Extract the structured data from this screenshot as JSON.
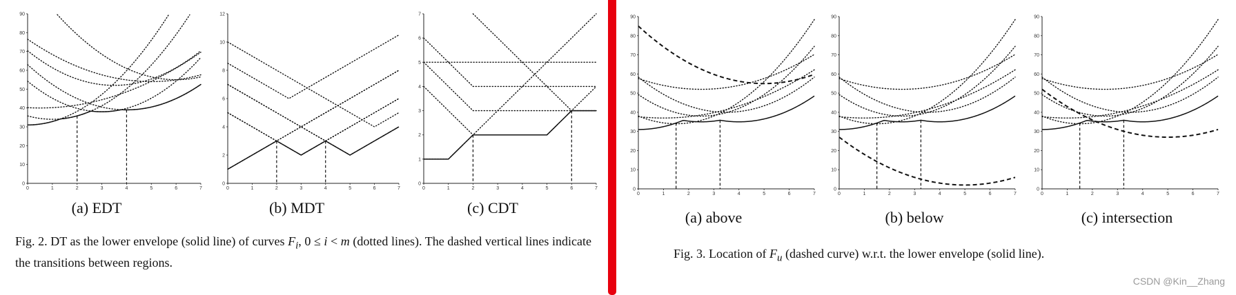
{
  "fig2": {
    "caption": {
      "prefix": "Fig. 2.   DT as the lower envelope (solid line) of curves ",
      "F": "F",
      "sub": "i",
      "mid": ", 0 ≤ ",
      "i": "i",
      "lt": " < ",
      "m": "m",
      "suffix": " (dotted  lines).  The dashed vertical  lines  indicate  the  transitions  between regions."
    },
    "panels": [
      {
        "label": "(a) EDT"
      },
      {
        "label": "(b) MDT"
      },
      {
        "label": "(c) CDT"
      }
    ]
  },
  "fig3": {
    "caption": {
      "prefix": "Fig. 3.   Location  of ",
      "F": "F",
      "sub": "u",
      "suffix": " (dashed  curve)  w.r.t.  the  lower  envelope  (solid  line)."
    },
    "panels": [
      {
        "label": "(a) above"
      },
      {
        "label": "(b) below"
      },
      {
        "label": "(c) intersection"
      }
    ]
  },
  "watermark": "CSDN @Kin__Zhang",
  "colors": {
    "divider": "#e8000e",
    "ink": "#111111"
  },
  "chart_data": [
    {
      "type": "line",
      "id": "edt",
      "xlim": [
        0,
        7
      ],
      "ylim": [
        0,
        90
      ],
      "xticks": [
        "0",
        "1",
        "2",
        "3",
        "4",
        "5",
        "6",
        "7"
      ],
      "yticks": [
        "0",
        "10",
        "20",
        "30",
        "40",
        "50",
        "60",
        "70",
        "80",
        "90"
      ],
      "dotted": [
        {
          "fn": "quad",
          "a": 1.8,
          "c": 0,
          "h": 31
        },
        {
          "fn": "quad",
          "a": 1.8,
          "c": 1,
          "h": 34
        },
        {
          "fn": "quad",
          "a": 1.8,
          "c": 3,
          "h": 38
        },
        {
          "fn": "quad",
          "a": 1.5,
          "c": 4,
          "h": 39
        },
        {
          "fn": "quad",
          "a": 1.5,
          "c": 3.5,
          "h": 52
        },
        {
          "fn": "quad",
          "a": 0.9,
          "c": 5,
          "h": 54
        },
        {
          "fn": "quad",
          "a": 0.7,
          "c": 0.5,
          "h": 40
        },
        {
          "fn": "quad",
          "a": 1.5,
          "c": 6,
          "h": 55
        }
      ],
      "envelope": true,
      "transitions": [
        2,
        4
      ]
    },
    {
      "type": "line",
      "id": "mdt",
      "xlim": [
        0,
        7
      ],
      "ylim": [
        0,
        12
      ],
      "xticks": [
        "0",
        "1",
        "2",
        "3",
        "4",
        "5",
        "6",
        "7"
      ],
      "yticks": [
        "0",
        "2",
        "4",
        "6",
        "8",
        "10",
        "12"
      ],
      "dotted": [
        {
          "fn": "abs",
          "c": 0,
          "h": 1
        },
        {
          "fn": "abs",
          "c": 2,
          "h": 3
        },
        {
          "fn": "abs",
          "c": 3,
          "h": 2
        },
        {
          "fn": "abs",
          "c": 4,
          "h": 3
        },
        {
          "fn": "abs",
          "c": 5,
          "h": 2
        },
        {
          "fn": "abs",
          "c": 2.5,
          "h": 6
        },
        {
          "fn": "abs",
          "c": 6,
          "h": 4
        }
      ],
      "envelope": true,
      "transitions": [
        2,
        4
      ]
    },
    {
      "type": "line",
      "id": "cdt",
      "xlim": [
        0,
        7
      ],
      "ylim": [
        0,
        7
      ],
      "xticks": [
        "0",
        "1",
        "2",
        "3",
        "4",
        "5",
        "6",
        "7"
      ],
      "yticks": [
        "0",
        "1",
        "2",
        "3",
        "4",
        "5",
        "6",
        "7"
      ],
      "dotted": [
        {
          "fn": "cheb",
          "c": 0.5,
          "w": 0.5,
          "h": 1
        },
        {
          "fn": "cheb",
          "c": 3.5,
          "w": 1.5,
          "h": 2
        },
        {
          "fn": "cheb",
          "c": 6.5,
          "w": 0.5,
          "h": 3
        },
        {
          "fn": "cheb",
          "c": 4.5,
          "w": 2.5,
          "h": 3
        },
        {
          "fn": "cheb",
          "c": 5,
          "w": 3,
          "h": 4
        },
        {
          "fn": "flat",
          "h": 5
        }
      ],
      "envelope": true,
      "transitions": [
        2,
        6
      ]
    },
    {
      "type": "line",
      "id": "above",
      "xlim": [
        0,
        7
      ],
      "ylim": [
        0,
        90
      ],
      "xticks": [
        "0",
        "1",
        "2",
        "3",
        "4",
        "5",
        "6",
        "7"
      ],
      "yticks": [
        "0",
        "10",
        "20",
        "30",
        "40",
        "50",
        "60",
        "70",
        "80",
        "90"
      ],
      "dotted": [
        {
          "fn": "quad",
          "a": 1.8,
          "c": 1.5,
          "h": 34
        },
        {
          "fn": "quad",
          "a": 1.8,
          "c": 2.5,
          "h": 38
        },
        {
          "fn": "quad",
          "a": 1.5,
          "c": 3.5,
          "h": 40
        },
        {
          "fn": "quad",
          "a": 0.9,
          "c": 2.5,
          "h": 52
        },
        {
          "fn": "quad",
          "a": 0.7,
          "c": 1,
          "h": 37
        }
      ],
      "solid": {
        "fn": "env",
        "pieces": [
          {
            "fn": "quad",
            "a": 1.5,
            "c": 0,
            "h": 31
          },
          {
            "fn": "quad",
            "a": 1.5,
            "c": 2.5,
            "h": 35
          },
          {
            "fn": "quad",
            "a": 1.5,
            "c": 4,
            "h": 35
          }
        ]
      },
      "dashed": {
        "fn": "quad",
        "a": 1.2,
        "c": 5,
        "h": 55
      },
      "transitions": [
        1.5,
        3.25
      ]
    },
    {
      "type": "line",
      "id": "below",
      "xlim": [
        0,
        7
      ],
      "ylim": [
        0,
        90
      ],
      "xticks": [
        "0",
        "1",
        "2",
        "3",
        "4",
        "5",
        "6",
        "7"
      ],
      "yticks": [
        "0",
        "10",
        "20",
        "30",
        "40",
        "50",
        "60",
        "70",
        "80",
        "90"
      ],
      "dotted": [
        {
          "fn": "quad",
          "a": 1.8,
          "c": 1.5,
          "h": 34
        },
        {
          "fn": "quad",
          "a": 1.8,
          "c": 2.5,
          "h": 38
        },
        {
          "fn": "quad",
          "a": 1.5,
          "c": 3.5,
          "h": 40
        },
        {
          "fn": "quad",
          "a": 0.9,
          "c": 2.5,
          "h": 52
        },
        {
          "fn": "quad",
          "a": 0.7,
          "c": 1,
          "h": 37
        }
      ],
      "solid": {
        "fn": "env",
        "pieces": [
          {
            "fn": "quad",
            "a": 1.5,
            "c": 0,
            "h": 31
          },
          {
            "fn": "quad",
            "a": 1.5,
            "c": 2.5,
            "h": 35
          },
          {
            "fn": "quad",
            "a": 1.5,
            "c": 4,
            "h": 35
          }
        ]
      },
      "dashed": {
        "fn": "quad",
        "a": 1.0,
        "c": 5,
        "h": 2
      },
      "transitions": [
        1.5,
        3.25
      ]
    },
    {
      "type": "line",
      "id": "intersection",
      "xlim": [
        0,
        7
      ],
      "ylim": [
        0,
        90
      ],
      "xticks": [
        "0",
        "1",
        "2",
        "3",
        "4",
        "5",
        "6",
        "7"
      ],
      "yticks": [
        "0",
        "10",
        "20",
        "30",
        "40",
        "50",
        "60",
        "70",
        "80",
        "90"
      ],
      "dotted": [
        {
          "fn": "quad",
          "a": 1.8,
          "c": 1.5,
          "h": 34
        },
        {
          "fn": "quad",
          "a": 1.8,
          "c": 2.5,
          "h": 38
        },
        {
          "fn": "quad",
          "a": 1.5,
          "c": 3.5,
          "h": 40
        },
        {
          "fn": "quad",
          "a": 0.9,
          "c": 2.5,
          "h": 52
        },
        {
          "fn": "quad",
          "a": 0.7,
          "c": 1,
          "h": 37
        }
      ],
      "solid": {
        "fn": "env",
        "pieces": [
          {
            "fn": "quad",
            "a": 1.5,
            "c": 0,
            "h": 31
          },
          {
            "fn": "quad",
            "a": 1.5,
            "c": 2.5,
            "h": 35
          },
          {
            "fn": "quad",
            "a": 1.5,
            "c": 4,
            "h": 35
          }
        ]
      },
      "dashed": {
        "fn": "quad",
        "a": 1.0,
        "c": 5,
        "h": 27
      },
      "transitions": [
        1.5,
        3.25
      ]
    }
  ]
}
